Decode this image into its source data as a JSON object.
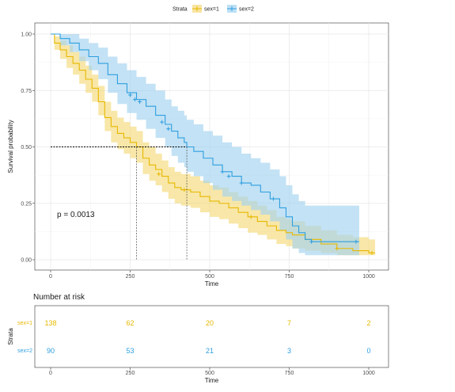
{
  "chart_data": [
    {
      "type": "line",
      "subtype": "kaplan-meier",
      "xlabel": "Time",
      "ylabel": "Survival probability",
      "xlim": [
        0,
        1000
      ],
      "ylim": [
        0,
        1
      ],
      "xticks": [
        "0",
        "250",
        "500",
        "750",
        "1000"
      ],
      "yticks": [
        "0.00",
        "0.25",
        "0.50",
        "0.75",
        "1.00"
      ],
      "grid": true,
      "legend": {
        "title": "Strata",
        "position": "top"
      },
      "annotation": "p = 0.0013",
      "median_line": {
        "y": 0.5,
        "x": [
          270,
          428
        ]
      },
      "series": [
        {
          "name": "sex=1",
          "color": "#E7B800",
          "band_color": "#F5DA7A",
          "steps": [
            [
              0,
              1.0
            ],
            [
              12,
              0.96
            ],
            [
              30,
              0.93
            ],
            [
              50,
              0.9
            ],
            [
              70,
              0.87
            ],
            [
              90,
              0.84
            ],
            [
              110,
              0.8
            ],
            [
              130,
              0.76
            ],
            [
              150,
              0.7
            ],
            [
              170,
              0.63
            ],
            [
              190,
              0.59
            ],
            [
              210,
              0.56
            ],
            [
              230,
              0.54
            ],
            [
              250,
              0.52
            ],
            [
              270,
              0.5
            ],
            [
              290,
              0.45
            ],
            [
              310,
              0.42
            ],
            [
              330,
              0.4
            ],
            [
              350,
              0.37
            ],
            [
              370,
              0.34
            ],
            [
              390,
              0.32
            ],
            [
              410,
              0.31
            ],
            [
              440,
              0.3
            ],
            [
              470,
              0.28
            ],
            [
              500,
              0.26
            ],
            [
              530,
              0.25
            ],
            [
              560,
              0.23
            ],
            [
              590,
              0.21
            ],
            [
              620,
              0.19
            ],
            [
              650,
              0.17
            ],
            [
              680,
              0.15
            ],
            [
              710,
              0.13
            ],
            [
              740,
              0.12
            ],
            [
              760,
              0.11
            ],
            [
              800,
              0.09
            ],
            [
              850,
              0.07
            ],
            [
              900,
              0.05
            ],
            [
              950,
              0.04
            ],
            [
              1000,
              0.03
            ],
            [
              1020,
              0.03
            ]
          ],
          "lower": [
            1.0,
            0.93,
            0.89,
            0.85,
            0.82,
            0.78,
            0.74,
            0.7,
            0.64,
            0.57,
            0.52,
            0.49,
            0.47,
            0.45,
            0.43,
            0.38,
            0.35,
            0.33,
            0.3,
            0.27,
            0.25,
            0.24,
            0.23,
            0.21,
            0.19,
            0.18,
            0.16,
            0.14,
            0.12,
            0.11,
            0.09,
            0.07,
            0.06,
            0.05,
            0.04,
            0.03,
            0.02,
            0.02,
            0.02,
            0.02
          ],
          "upper": [
            1.0,
            0.99,
            0.97,
            0.95,
            0.92,
            0.9,
            0.86,
            0.82,
            0.77,
            0.7,
            0.66,
            0.63,
            0.61,
            0.59,
            0.57,
            0.52,
            0.5,
            0.47,
            0.44,
            0.41,
            0.39,
            0.38,
            0.37,
            0.35,
            0.33,
            0.32,
            0.3,
            0.28,
            0.26,
            0.24,
            0.22,
            0.19,
            0.18,
            0.17,
            0.15,
            0.13,
            0.11,
            0.1,
            0.09,
            0.09
          ],
          "censor": [
            [
              340,
              0.38
            ],
            [
              420,
              0.31
            ],
            [
              630,
              0.19
            ],
            [
              900,
              0.05
            ],
            [
              1010,
              0.03
            ]
          ]
        },
        {
          "name": "sex=2",
          "color": "#2E9FDF",
          "band_color": "#A3D3F0",
          "steps": [
            [
              0,
              1.0
            ],
            [
              30,
              0.98
            ],
            [
              60,
              0.96
            ],
            [
              90,
              0.93
            ],
            [
              120,
              0.9
            ],
            [
              150,
              0.87
            ],
            [
              180,
              0.82
            ],
            [
              210,
              0.78
            ],
            [
              240,
              0.74
            ],
            [
              270,
              0.71
            ],
            [
              300,
              0.68
            ],
            [
              330,
              0.64
            ],
            [
              360,
              0.6
            ],
            [
              380,
              0.57
            ],
            [
              400,
              0.54
            ],
            [
              420,
              0.52
            ],
            [
              428,
              0.5
            ],
            [
              450,
              0.48
            ],
            [
              480,
              0.45
            ],
            [
              510,
              0.42
            ],
            [
              540,
              0.39
            ],
            [
              570,
              0.37
            ],
            [
              600,
              0.34
            ],
            [
              630,
              0.33
            ],
            [
              660,
              0.3
            ],
            [
              690,
              0.27
            ],
            [
              720,
              0.23
            ],
            [
              740,
              0.19
            ],
            [
              760,
              0.15
            ],
            [
              780,
              0.12
            ],
            [
              800,
              0.09
            ],
            [
              820,
              0.08
            ],
            [
              970,
              0.08
            ]
          ],
          "lower": [
            1.0,
            0.95,
            0.92,
            0.88,
            0.84,
            0.8,
            0.74,
            0.69,
            0.65,
            0.62,
            0.58,
            0.54,
            0.5,
            0.46,
            0.43,
            0.41,
            0.39,
            0.37,
            0.34,
            0.31,
            0.28,
            0.26,
            0.24,
            0.22,
            0.2,
            0.17,
            0.13,
            0.09,
            0.05,
            0.03,
            0.02,
            0.02,
            0.02
          ],
          "upper": [
            1.0,
            1.0,
            1.0,
            0.98,
            0.96,
            0.94,
            0.9,
            0.87,
            0.84,
            0.81,
            0.78,
            0.75,
            0.71,
            0.68,
            0.66,
            0.64,
            0.62,
            0.6,
            0.57,
            0.55,
            0.52,
            0.5,
            0.47,
            0.45,
            0.43,
            0.4,
            0.37,
            0.33,
            0.29,
            0.26,
            0.24,
            0.24,
            0.24
          ],
          "censor": [
            [
              250,
              0.73
            ],
            [
              265,
              0.71
            ],
            [
              280,
              0.7
            ],
            [
              350,
              0.61
            ],
            [
              370,
              0.58
            ],
            [
              540,
              0.39
            ],
            [
              560,
              0.37
            ],
            [
              600,
              0.34
            ],
            [
              700,
              0.27
            ],
            [
              820,
              0.08
            ],
            [
              960,
              0.08
            ]
          ]
        }
      ]
    },
    {
      "type": "table",
      "title": "Number at risk",
      "xlabel": "Time",
      "ylabel": "Strata",
      "xlim": [
        0,
        1000
      ],
      "times": [
        0,
        250,
        500,
        750,
        1000
      ],
      "xticks": [
        "0",
        "250",
        "500",
        "750",
        "1000"
      ],
      "rows": [
        {
          "name": "sex=1",
          "color": "#E7B800",
          "values": [
            "138",
            "62",
            "20",
            "7",
            "2"
          ]
        },
        {
          "name": "sex=2",
          "color": "#2E9FDF",
          "values": [
            "90",
            "53",
            "21",
            "3",
            "0"
          ]
        }
      ]
    }
  ]
}
